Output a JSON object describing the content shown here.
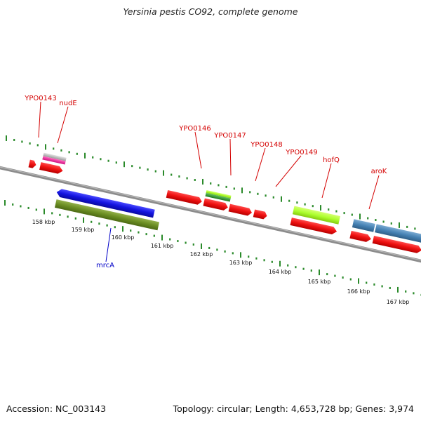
{
  "title": "Yersinia pestis CO92, complete genome",
  "footer": {
    "accession": "Accession: NC_003143",
    "summary": "Topology: circular; Length: 4,653,728 bp; Genes: 3,974"
  },
  "colors": {
    "backbone": "#888888",
    "tick": "#2a8a2a",
    "gene_label": "#d40000",
    "mrcA_label": "#0000c8",
    "red_feature": "#ee1111",
    "blue_feature": "#1414e0",
    "olive_feature": "#6b8e23",
    "steel_feature": "#4682b4",
    "lime_feature": "#adff2f"
  },
  "scale_labels": [
    "158 kbp",
    "159 kbp",
    "160 kbp",
    "161 kbp",
    "162 kbp",
    "163 kbp",
    "164 kbp",
    "165 kbp",
    "166 kbp",
    "167 kbp"
  ],
  "gene_labels": [
    {
      "id": "YPO0143",
      "text": "YPO0143"
    },
    {
      "id": "nudE",
      "text": "nudE"
    },
    {
      "id": "YPO0146",
      "text": "YPO0146"
    },
    {
      "id": "YPO0147",
      "text": "YPO0147"
    },
    {
      "id": "YPO0148",
      "text": "YPO0148"
    },
    {
      "id": "YPO0149",
      "text": "YPO0149"
    },
    {
      "id": "hofQ",
      "text": "hofQ"
    },
    {
      "id": "aroK",
      "text": "aroK"
    },
    {
      "id": "mrcA",
      "text": "mrcA"
    }
  ]
}
